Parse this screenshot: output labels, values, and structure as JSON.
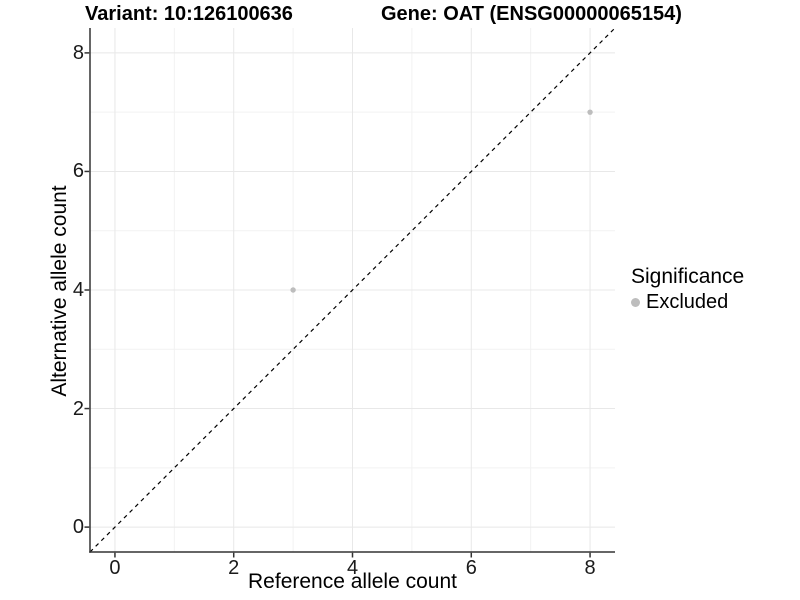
{
  "chart_data": {
    "type": "scatter",
    "title_left": "Variant: 10:126100636",
    "title_right": "Gene: OAT (ENSG00000065154)",
    "xlabel": "Reference allele count",
    "ylabel": "Alternative allele count",
    "xlim": [
      -0.42,
      8.42
    ],
    "ylim": [
      -0.42,
      8.42
    ],
    "xticks": [
      0,
      2,
      4,
      6,
      8
    ],
    "yticks": [
      0,
      2,
      4,
      6,
      8
    ],
    "x_minor_ticks": [
      1,
      3,
      5,
      7
    ],
    "y_minor_ticks": [
      1,
      3,
      5,
      7
    ],
    "grid": "major+minor",
    "series": [
      {
        "name": "Excluded",
        "color": "#bdbdbd",
        "marker": "circle",
        "points": [
          [
            3,
            4
          ],
          [
            8,
            7
          ]
        ]
      }
    ],
    "reference_line": {
      "slope": 1,
      "intercept": 0,
      "style": "dashed",
      "color": "#000000"
    },
    "legend": {
      "position": "right",
      "title": "Significance",
      "items": [
        {
          "label": "Excluded",
          "color": "#bdbdbd",
          "marker": "circle"
        }
      ]
    }
  },
  "colors": {
    "background": "#ffffff",
    "grid_major": "#e8e8e8",
    "grid_minor": "#f2f2f2",
    "axis_line": "#333333",
    "tick_mark": "#333333",
    "tick_text": "#1a1a1a"
  }
}
